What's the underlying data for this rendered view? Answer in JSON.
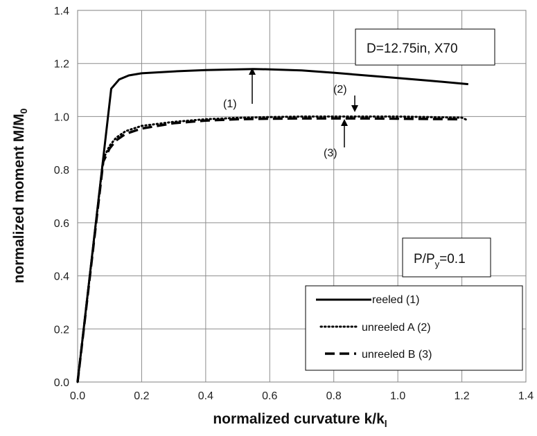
{
  "chart_data": {
    "type": "line",
    "xlabel": "normalized curvature k/k",
    "xlabel_sub": "l",
    "ylabel": "normalized moment M/M",
    "ylabel_sub": "0",
    "xlim": [
      0,
      1.4
    ],
    "ylim": [
      0,
      1.4
    ],
    "xticks": [
      "0.0",
      "0.2",
      "0.4",
      "0.6",
      "0.8",
      "1.0",
      "1.2",
      "1.4"
    ],
    "yticks": [
      "0.0",
      "0.2",
      "0.4",
      "0.6",
      "0.8",
      "1.0",
      "1.2",
      "1.4"
    ],
    "grid": true,
    "series": [
      {
        "name": "reeled (1)",
        "style": "solid",
        "x": [
          0.0,
          0.105,
          0.13,
          0.16,
          0.2,
          0.3,
          0.4,
          0.5,
          0.55,
          0.6,
          0.7,
          0.8,
          0.9,
          1.0,
          1.1,
          1.22
        ],
        "y": [
          0.0,
          1.105,
          1.14,
          1.155,
          1.163,
          1.17,
          1.175,
          1.178,
          1.179,
          1.178,
          1.174,
          1.165,
          1.155,
          1.145,
          1.135,
          1.122
        ]
      },
      {
        "name": "unreeled A (2)",
        "style": "dotted",
        "x": [
          0.0,
          0.08,
          0.1,
          0.12,
          0.15,
          0.2,
          0.3,
          0.4,
          0.5,
          0.6,
          0.7,
          0.8,
          0.86,
          0.9,
          1.0,
          1.1,
          1.2,
          1.22
        ],
        "y": [
          0.0,
          0.84,
          0.89,
          0.92,
          0.945,
          0.965,
          0.98,
          0.99,
          0.995,
          0.998,
          1.0,
          1.0,
          1.0,
          1.0,
          1.0,
          0.998,
          0.996,
          0.985
        ]
      },
      {
        "name": "unreeled B (3)",
        "style": "dashed",
        "x": [
          0.0,
          0.08,
          0.1,
          0.12,
          0.15,
          0.2,
          0.3,
          0.4,
          0.5,
          0.6,
          0.7,
          0.8,
          0.9,
          1.0,
          1.1,
          1.2
        ],
        "y": [
          0.0,
          0.83,
          0.88,
          0.91,
          0.935,
          0.955,
          0.975,
          0.985,
          0.99,
          0.992,
          0.993,
          0.993,
          0.993,
          0.992,
          0.991,
          0.99
        ]
      }
    ],
    "annotations": {
      "box_top": "D=12.75in, X70",
      "box_pressure_main": "P/P",
      "box_pressure_sub": "y",
      "box_pressure_value": "=0.1",
      "arrow1_label": "(1)",
      "arrow2_label": "(2)",
      "arrow3_label": "(3)"
    },
    "legend": {
      "placement": "bottom-right"
    }
  }
}
